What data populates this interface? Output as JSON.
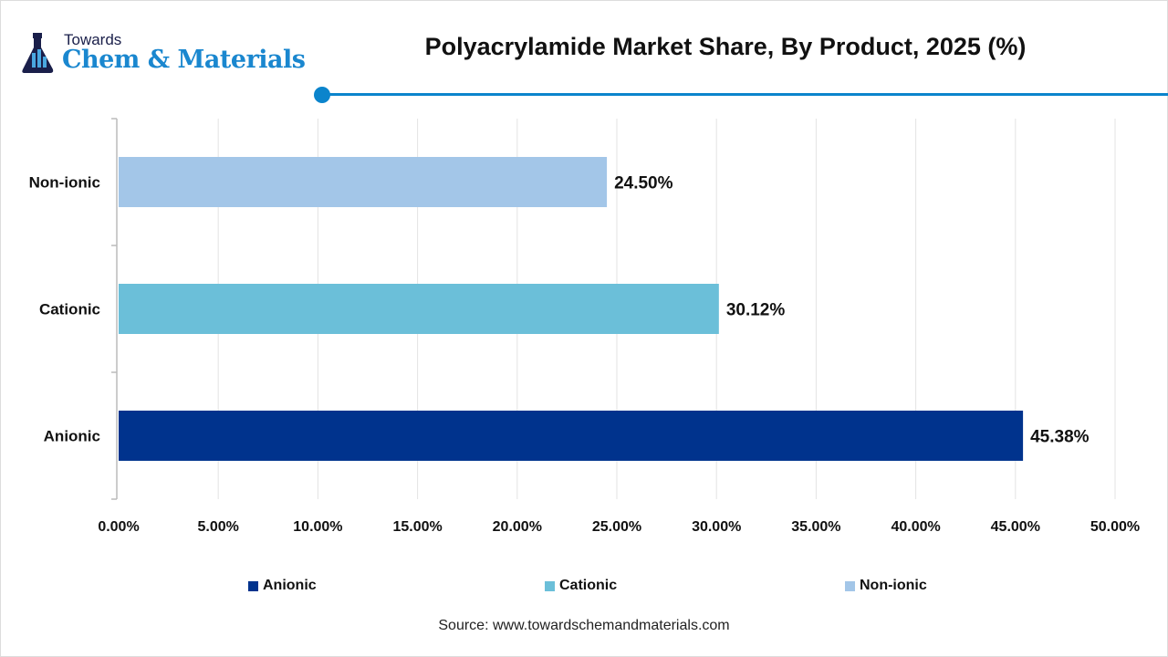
{
  "logo": {
    "line1": "Towards",
    "line2": "Chem & Materials"
  },
  "header": {
    "title": "Polyacrylamide Market Share, By Product, 2025 (%)",
    "accent_color": "#0b84cc"
  },
  "chart_data": {
    "type": "bar",
    "orientation": "horizontal",
    "title": "Polyacrylamide Market Share, By Product, 2025 (%)",
    "categories": [
      "Anionic",
      "Cationic",
      "Non-ionic"
    ],
    "values": [
      45.38,
      30.12,
      24.5
    ],
    "data_labels": [
      "45.38%",
      "30.12%",
      "24.50%"
    ],
    "colors": [
      "#00338d",
      "#6bbfd9",
      "#a3c6e8"
    ],
    "xlim": [
      0,
      50
    ],
    "x_ticks": [
      0,
      5,
      10,
      15,
      20,
      25,
      30,
      35,
      40,
      45,
      50
    ],
    "x_tick_labels": [
      "0.00%",
      "5.00%",
      "10.00%",
      "15.00%",
      "20.00%",
      "25.00%",
      "30.00%",
      "35.00%",
      "40.00%",
      "45.00%",
      "50.00%"
    ],
    "grid": "vertical",
    "legend": {
      "placement": "bottom",
      "entries": [
        "Anionic",
        "Cationic",
        "Non-ionic"
      ]
    }
  },
  "source": "Source: www.towardschemandmaterials.com"
}
